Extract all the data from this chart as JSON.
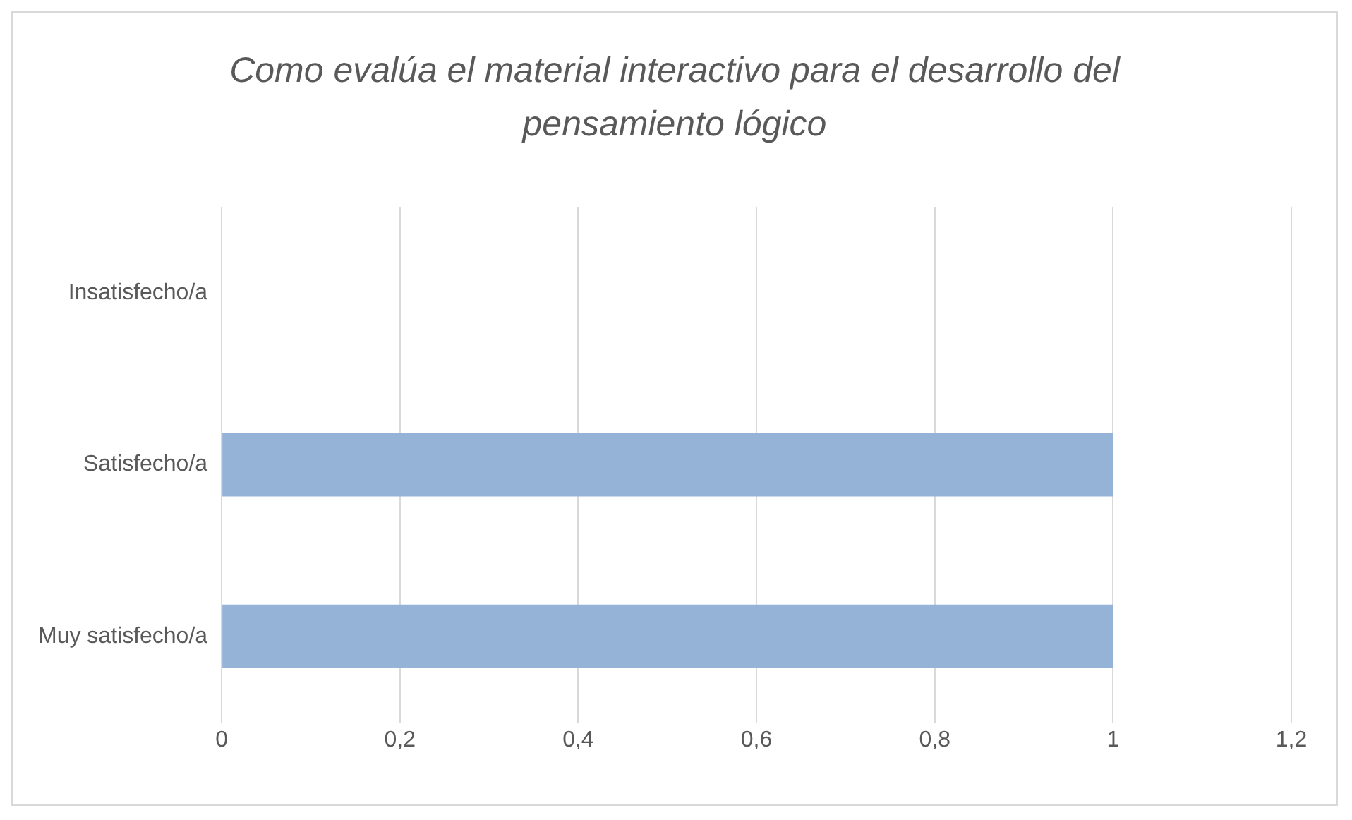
{
  "chart_data": {
    "type": "bar",
    "orientation": "horizontal",
    "title": "Como evalúa el material interactivo para el desarrollo del pensamiento lógico",
    "categories": [
      "Insatisfecho/a",
      "Satisfecho/a",
      "Muy satisfecho/a"
    ],
    "values": [
      0,
      1,
      1
    ],
    "color": "#95b3d7",
    "xlim": [
      0,
      1.2
    ],
    "xticks": [
      0,
      {
        "value": 0.2,
        "label": "0,2"
      },
      {
        "value": 0.4,
        "label": "0,4"
      },
      {
        "value": 0.6,
        "label": "0,6"
      },
      {
        "value": 0.8,
        "label": "0,8"
      },
      1,
      {
        "value": 1.2,
        "label": "1,2"
      }
    ],
    "grid": "x"
  }
}
